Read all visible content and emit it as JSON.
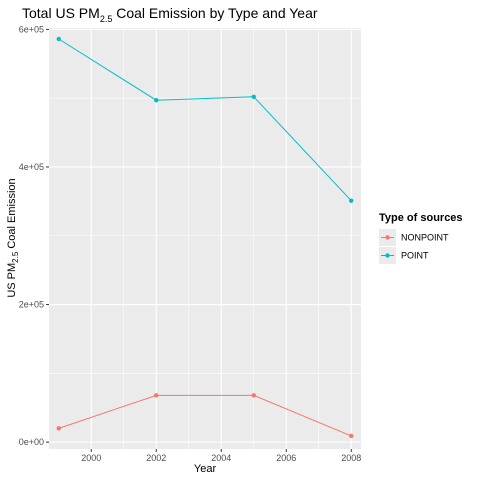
{
  "chart_data": {
    "type": "line",
    "title": {
      "prefix": "Total US PM",
      "subscript": "2.5",
      "suffix": " Coal Emission by Type and Year"
    },
    "xlabel": "Year",
    "ylabel": {
      "prefix": "US PM",
      "subscript": "2.5",
      "suffix": " Coal Emission"
    },
    "xlim": [
      1998.7,
      2008.3
    ],
    "ylim": [
      -10000,
      602000
    ],
    "x_ticks": [
      2000,
      2002,
      2004,
      2006,
      2008
    ],
    "x_tick_labels": [
      "2000",
      "2002",
      "2004",
      "2006",
      "2008"
    ],
    "y_ticks": [
      0,
      200000,
      400000,
      600000
    ],
    "y_tick_labels": [
      "0e+00",
      "2e+05",
      "4e+05",
      "6e+05"
    ],
    "grid": true,
    "legend": {
      "title": "Type of sources",
      "placement": "right"
    },
    "series": [
      {
        "name": "NONPOINT",
        "color": "#F8766D",
        "x": [
          1999,
          2002,
          2005,
          2008
        ],
        "y": [
          20000,
          68000,
          68000,
          9000
        ]
      },
      {
        "name": "POINT",
        "color": "#00BFC4",
        "x": [
          1999,
          2002,
          2005,
          2008
        ],
        "y": [
          586000,
          497000,
          502000,
          351000
        ]
      }
    ]
  }
}
